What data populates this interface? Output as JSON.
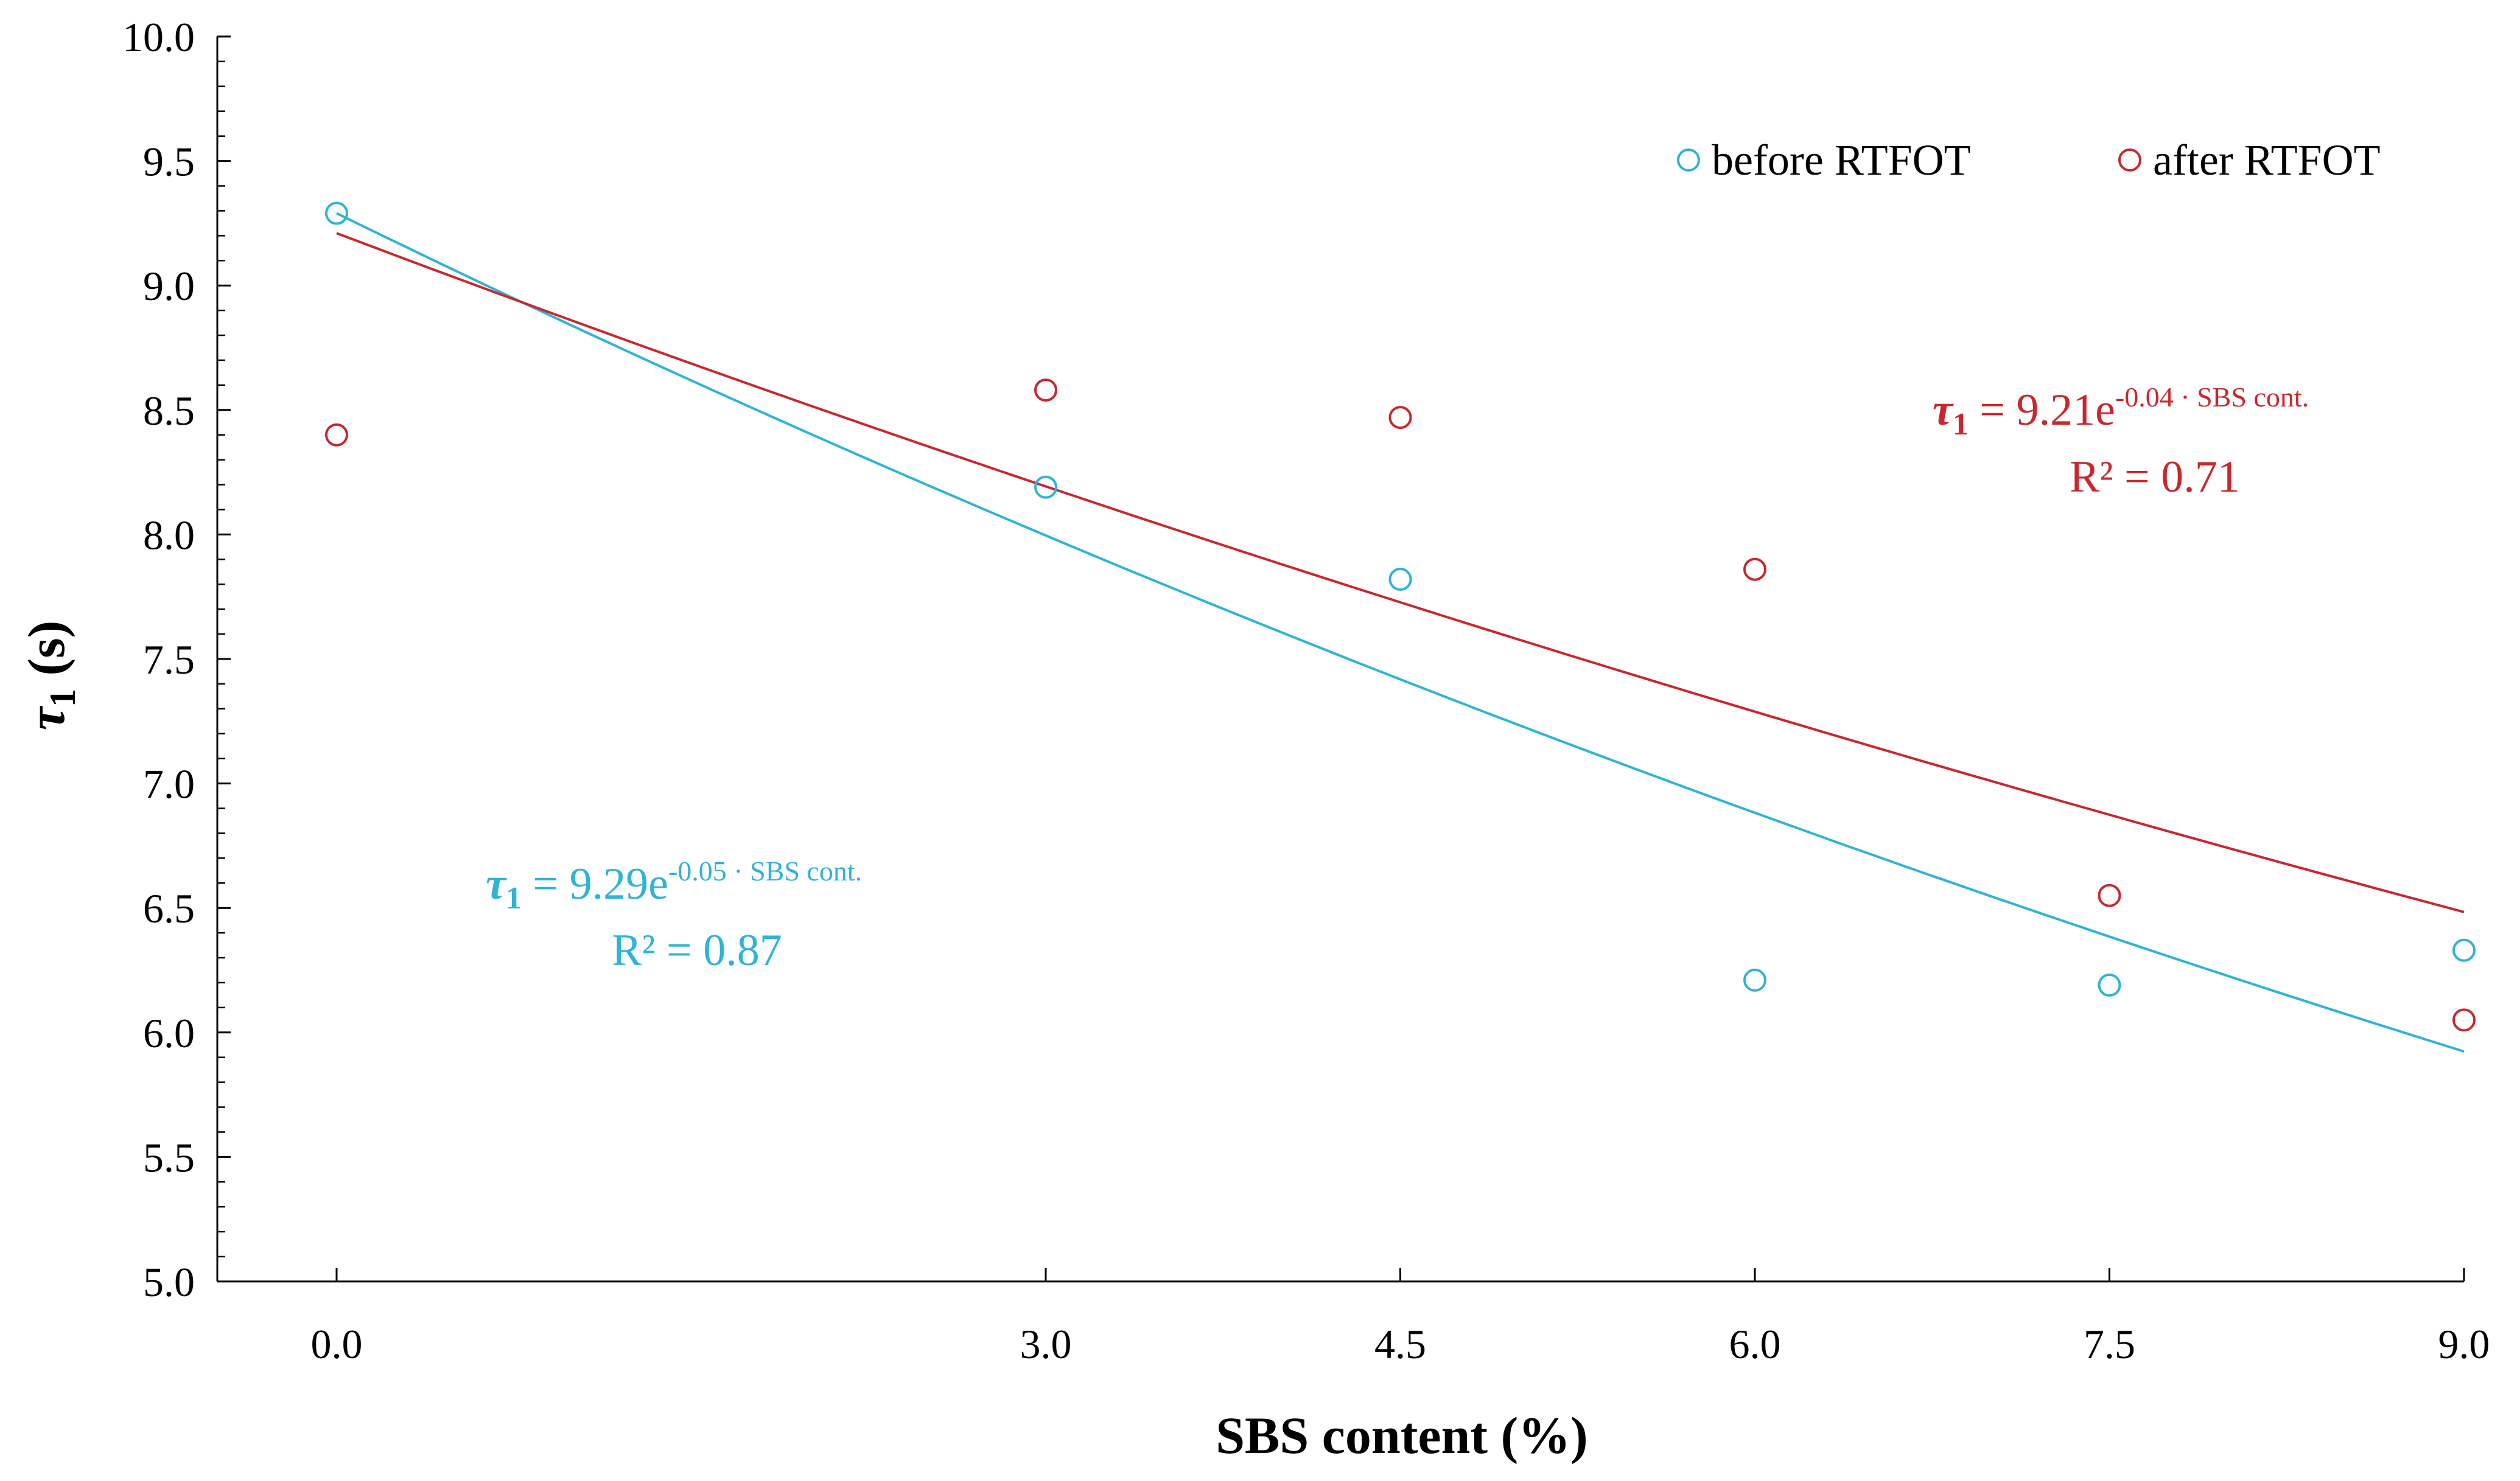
{
  "chart_data": {
    "type": "scatter",
    "title": "",
    "xlabel": "SBS content (%)",
    "ylabel_symbol": "τ",
    "ylabel_subscript": "1",
    "ylabel_unit": "(s)",
    "xlim": [
      -0.5,
      9.0
    ],
    "ylim": [
      5.0,
      10.0
    ],
    "x_ticks": [
      0.0,
      3.0,
      4.5,
      6.0,
      7.5,
      9.0
    ],
    "x_tick_labels": [
      "0.0",
      "3.0",
      "4.5",
      "6.0",
      "7.5",
      "9.0"
    ],
    "y_ticks": [
      5.0,
      5.5,
      6.0,
      6.5,
      7.0,
      7.5,
      8.0,
      8.5,
      9.0,
      9.5,
      10.0
    ],
    "y_tick_labels": [
      "5.0",
      "5.5",
      "6.0",
      "6.5",
      "7.0",
      "7.5",
      "8.0",
      "8.5",
      "9.0",
      "9.5",
      "10.0"
    ],
    "y_minor_step": 0.1,
    "grid": false,
    "legend_position": "top-right",
    "series": [
      {
        "name": "before RTFOT",
        "color": "#2fb3d6",
        "x": [
          0.0,
          3.0,
          4.5,
          6.0,
          7.5,
          9.0
        ],
        "y": [
          9.29,
          8.19,
          7.82,
          6.21,
          6.19,
          6.33
        ],
        "fit": {
          "a": 9.29,
          "b": -0.05
        },
        "equation": {
          "lhs_symbol": "τ",
          "lhs_subscript": "1",
          "rhs": " = 9.29e",
          "exponent": "-0.05 · SBS cont.",
          "r2_label": "R² = 0.87"
        }
      },
      {
        "name": "after RTFOT",
        "color": "#c8282d",
        "x": [
          0.0,
          3.0,
          4.5,
          6.0,
          7.5,
          9.0
        ],
        "y": [
          8.4,
          8.58,
          8.47,
          7.86,
          6.55,
          6.05
        ],
        "fit": {
          "a": 9.21,
          "b": -0.039
        },
        "equation": {
          "lhs_symbol": "τ",
          "lhs_subscript": "1",
          "rhs": " = 9.21e",
          "exponent": "-0.04 · SBS cont.",
          "r2_label": "R² = 0.71"
        }
      }
    ]
  }
}
